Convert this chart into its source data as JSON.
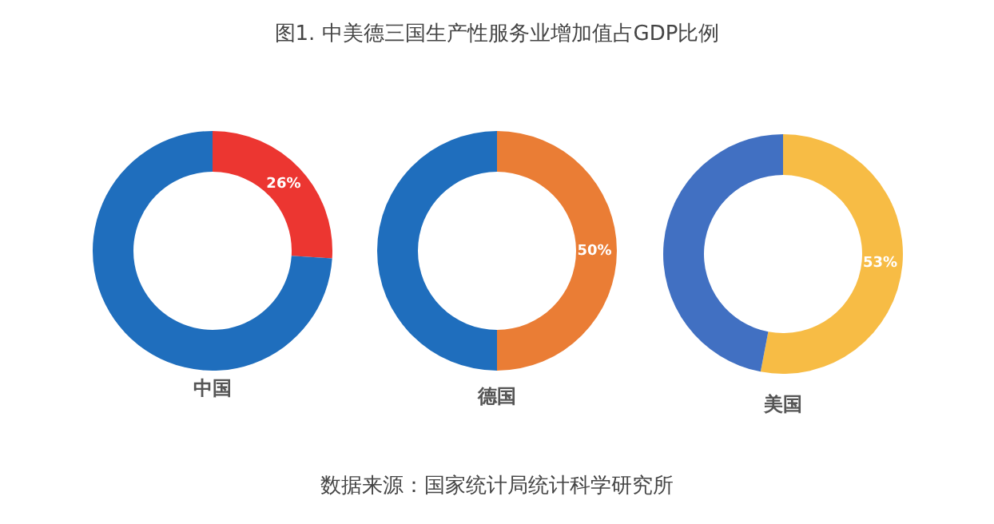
{
  "chart_data": [
    {
      "type": "donut",
      "title": "图1. 中美德三国生产性服务业增加值占GDP比例",
      "xlabel": "中国",
      "categories": [
        null,
        null
      ],
      "values": [
        26,
        74
      ],
      "colors": [
        "#ec3631",
        "#1f6ebd"
      ],
      "value_labels": [
        "26%",
        null
      ]
    },
    {
      "type": "donut",
      "xlabel": "德国",
      "categories": [
        null,
        null
      ],
      "values": [
        50,
        50
      ],
      "colors": [
        "#ea7d35",
        "#1f6ebd"
      ],
      "value_labels": [
        "50%",
        null
      ],
      "annotations": [
        "数据来源：国家统计局统计科学研究所"
      ]
    },
    {
      "type": "donut",
      "xlabel": "美国",
      "categories": [
        null,
        null
      ],
      "values": [
        53,
        47
      ],
      "colors": [
        "#f7bc45",
        "#4170c2"
      ],
      "value_labels": [
        "53%",
        null
      ]
    }
  ]
}
